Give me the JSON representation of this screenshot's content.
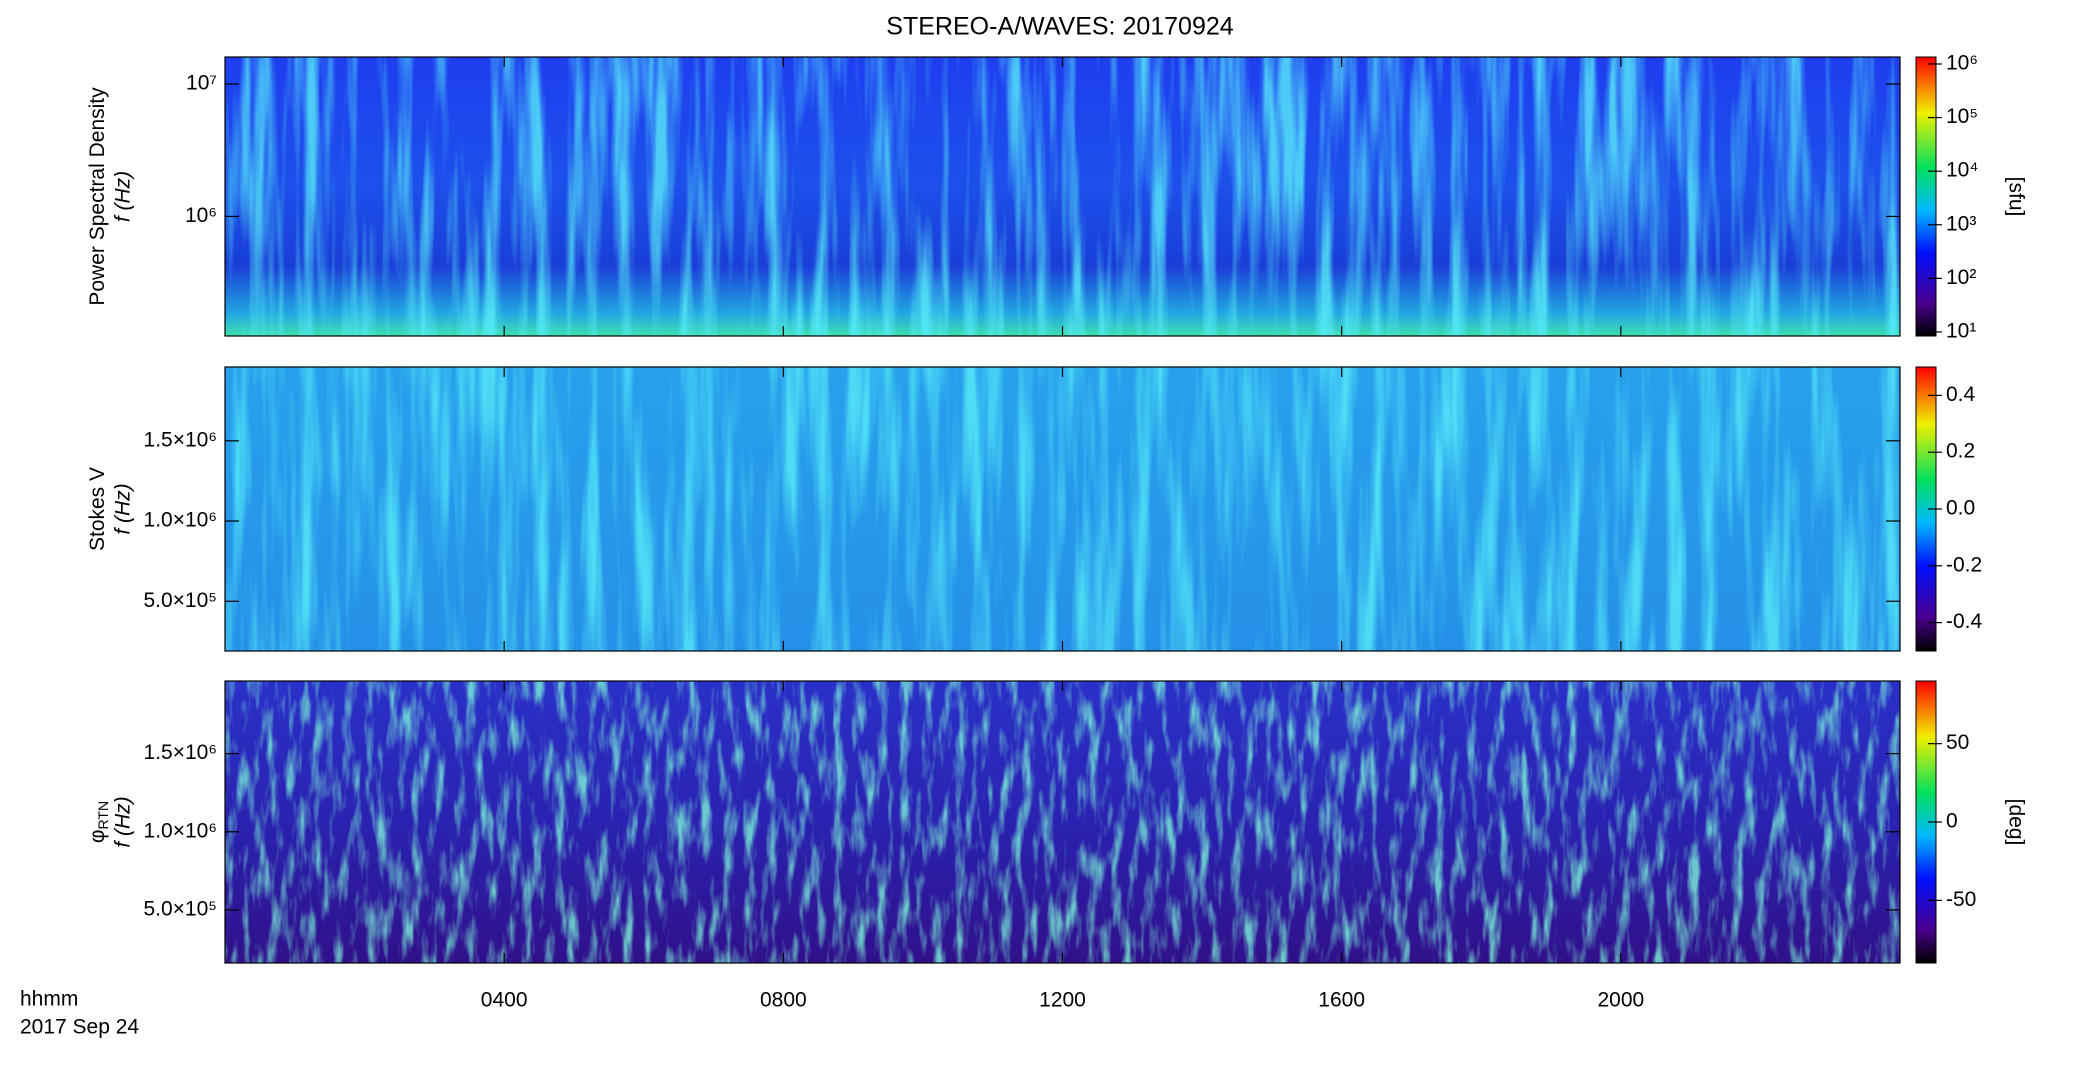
{
  "chart_data": [
    {
      "type": "spectrogram",
      "title": "STEREO-A/WAVES: 20170924",
      "ylabel": [
        "Power Spectral Density",
        "f (Hz)"
      ],
      "ylog": true,
      "ylim": [
        125000,
        16000000
      ],
      "yticks": [
        {
          "value": 1000000,
          "label": "10⁶"
        },
        {
          "value": 10000000,
          "label": "10⁷"
        }
      ],
      "xlim": [
        0,
        24
      ],
      "xticks": [
        {
          "value": 4,
          "label": "0400"
        },
        {
          "value": 8,
          "label": "0800"
        },
        {
          "value": 12,
          "label": "1200"
        },
        {
          "value": 16,
          "label": "1600"
        },
        {
          "value": 20,
          "label": "2000"
        }
      ],
      "colorbar": {
        "label": "[sfu]",
        "log": true,
        "lim": [
          8.4,
          1350000
        ],
        "ticks": [
          {
            "value": 10,
            "label": "10¹"
          },
          {
            "value": 100,
            "label": "10²"
          },
          {
            "value": 1000,
            "label": "10³"
          },
          {
            "value": 10000,
            "label": "10⁴"
          },
          {
            "value": 100000,
            "label": "10⁵"
          },
          {
            "value": 1000000,
            "label": "10⁶"
          }
        ]
      }
    },
    {
      "type": "spectrogram",
      "ylabel": [
        "Stokes V",
        "f (Hz)"
      ],
      "ylog": false,
      "ylim": [
        190000,
        1960000
      ],
      "yticks": [
        {
          "value": 500000,
          "label": "5.0×10⁵"
        },
        {
          "value": 1000000,
          "label": "1.0×10⁶"
        },
        {
          "value": 1500000,
          "label": "1.5×10⁶"
        }
      ],
      "xlim": [
        0,
        24
      ],
      "xticks": [
        {
          "value": 4,
          "label": "0400"
        },
        {
          "value": 8,
          "label": "0800"
        },
        {
          "value": 12,
          "label": "1200"
        },
        {
          "value": 16,
          "label": "1600"
        },
        {
          "value": 20,
          "label": "2000"
        }
      ],
      "colorbar": {
        "log": false,
        "lim": [
          -0.5,
          0.5
        ],
        "ticks": [
          -0.4,
          -0.2,
          {
            "value": 0,
            "label": "0.0"
          },
          0.2,
          0.4
        ]
      }
    },
    {
      "type": "spectrogram",
      "ylabel": [
        "φ",
        "f (Hz)"
      ],
      "ylabel_sub": "RTN",
      "ylog": false,
      "ylim": [
        160000,
        1965000
      ],
      "yticks": [
        {
          "value": 500000,
          "label": "5.0×10⁵"
        },
        {
          "value": 1000000,
          "label": "1.0×10⁶"
        },
        {
          "value": 1500000,
          "label": "1.5×10⁶"
        }
      ],
      "xlim": [
        0,
        24
      ],
      "xticks": [
        {
          "value": 4,
          "label": "0400"
        },
        {
          "value": 8,
          "label": "0800"
        },
        {
          "value": 12,
          "label": "1200"
        },
        {
          "value": 16,
          "label": "1600"
        },
        {
          "value": 20,
          "label": "2000"
        }
      ],
      "xlabel": "hhmm",
      "date": "2017 Sep 24",
      "colorbar": {
        "label": "[deg]",
        "log": false,
        "lim": [
          -90,
          90
        ],
        "ticks": [
          -50,
          0,
          50
        ]
      }
    }
  ]
}
